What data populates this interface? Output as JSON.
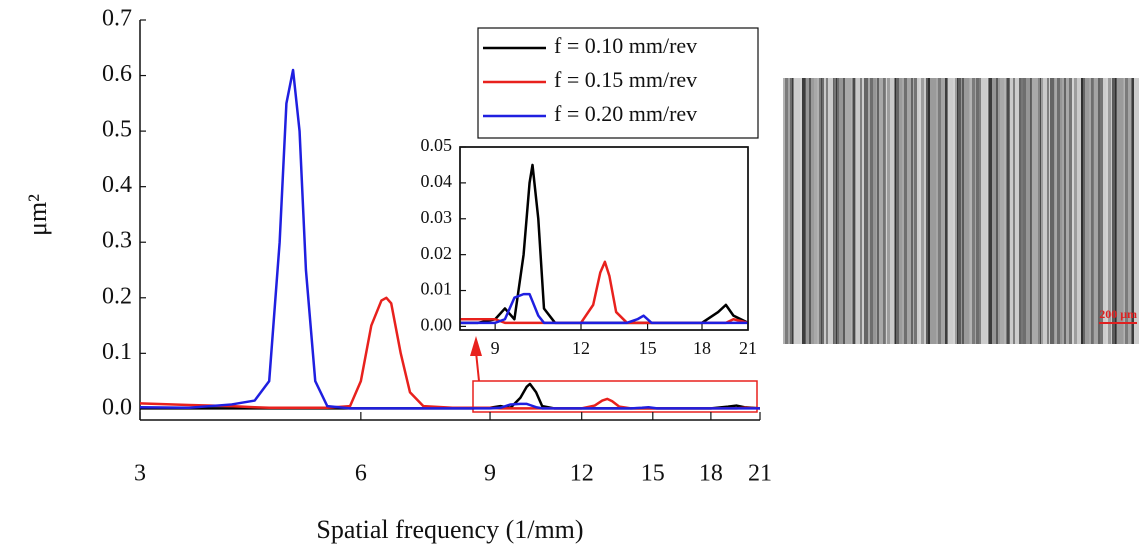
{
  "chart_data": {
    "type": "line",
    "xlabel": "Spatial frequency (1/mm)",
    "ylabel": "μm²",
    "xscale": "log",
    "legend": "upper right",
    "xlim": [
      3,
      21
    ],
    "xticks": [
      3,
      6,
      9,
      12,
      15,
      18,
      21
    ],
    "ylim": [
      -0.02,
      0.7
    ],
    "yticks": [
      {
        "value": 0,
        "label": "0.0"
      },
      0.1,
      0.2,
      0.3,
      0.4,
      0.5,
      0.6,
      0.7
    ],
    "x": [
      3,
      3.5,
      4,
      4.3,
      4.5,
      4.65,
      4.75,
      4.85,
      4.95,
      5.05,
      5.2,
      5.4,
      5.8,
      6.0,
      6.2,
      6.4,
      6.5,
      6.6,
      6.8,
      7.0,
      7.3,
      8,
      8.5,
      9,
      9.3,
      9.6,
      9.9,
      10.1,
      10.2,
      10.4,
      10.6,
      11,
      12,
      12.5,
      12.8,
      13,
      13.2,
      13.5,
      14,
      14.5,
      14.8,
      15.2,
      16,
      18,
      19,
      19.5,
      20,
      21
    ],
    "series": [
      {
        "name": "f = 0.10 mm/rev",
        "color": "#000000",
        "values": [
          0.001,
          0.001,
          0.001,
          0.001,
          0.001,
          0.001,
          0.001,
          0.001,
          0.001,
          0.001,
          0.001,
          0.001,
          0.001,
          0.001,
          0.001,
          0.001,
          0.001,
          0.001,
          0.001,
          0.001,
          0.001,
          0.001,
          0.001,
          0.002,
          0.005,
          0.002,
          0.02,
          0.04,
          0.045,
          0.03,
          0.005,
          0.001,
          0.001,
          0.001,
          0.001,
          0.001,
          0.001,
          0.001,
          0.001,
          0.001,
          0.001,
          0.001,
          0.001,
          0.001,
          0.004,
          0.006,
          0.003,
          0.001
        ]
      },
      {
        "name": "f = 0.15 mm/rev",
        "color": "#e8211d",
        "values": [
          0.01,
          0.007,
          0.005,
          0.003,
          0.002,
          0.002,
          0.002,
          0.002,
          0.002,
          0.002,
          0.002,
          0.002,
          0.005,
          0.05,
          0.15,
          0.195,
          0.2,
          0.19,
          0.1,
          0.03,
          0.005,
          0.002,
          0.002,
          0.002,
          0.001,
          0.001,
          0.001,
          0.001,
          0.001,
          0.001,
          0.001,
          0.001,
          0.001,
          0.006,
          0.015,
          0.018,
          0.014,
          0.004,
          0.001,
          0.001,
          0.001,
          0.001,
          0.001,
          0.001,
          0.001,
          0.001,
          0.002,
          0.001
        ]
      },
      {
        "name": "f = 0.20 mm/rev",
        "color": "#1f1fe0",
        "values": [
          0.003,
          0.002,
          0.008,
          0.015,
          0.05,
          0.3,
          0.55,
          0.61,
          0.5,
          0.25,
          0.05,
          0.005,
          0.001,
          0.001,
          0.001,
          0.001,
          0.001,
          0.001,
          0.001,
          0.001,
          0.001,
          0.001,
          0.001,
          0.001,
          0.002,
          0.008,
          0.009,
          0.009,
          0.007,
          0.003,
          0.001,
          0.001,
          0.001,
          0.001,
          0.001,
          0.001,
          0.001,
          0.001,
          0.001,
          0.002,
          0.003,
          0.001,
          0.001,
          0.001,
          0.001,
          0.001,
          0.001,
          0.001
        ]
      }
    ],
    "inset": {
      "xlim": [
        8,
        21
      ],
      "xticks": [
        9,
        12,
        15,
        18,
        21
      ],
      "ylim": [
        -0.001,
        0.05
      ],
      "yticks": [
        {
          "value": 0,
          "label": "0.00"
        },
        0.01,
        0.02,
        0.03,
        0.04,
        0.05
      ]
    }
  },
  "micrograph": {
    "scale_bar": "200 μm"
  }
}
